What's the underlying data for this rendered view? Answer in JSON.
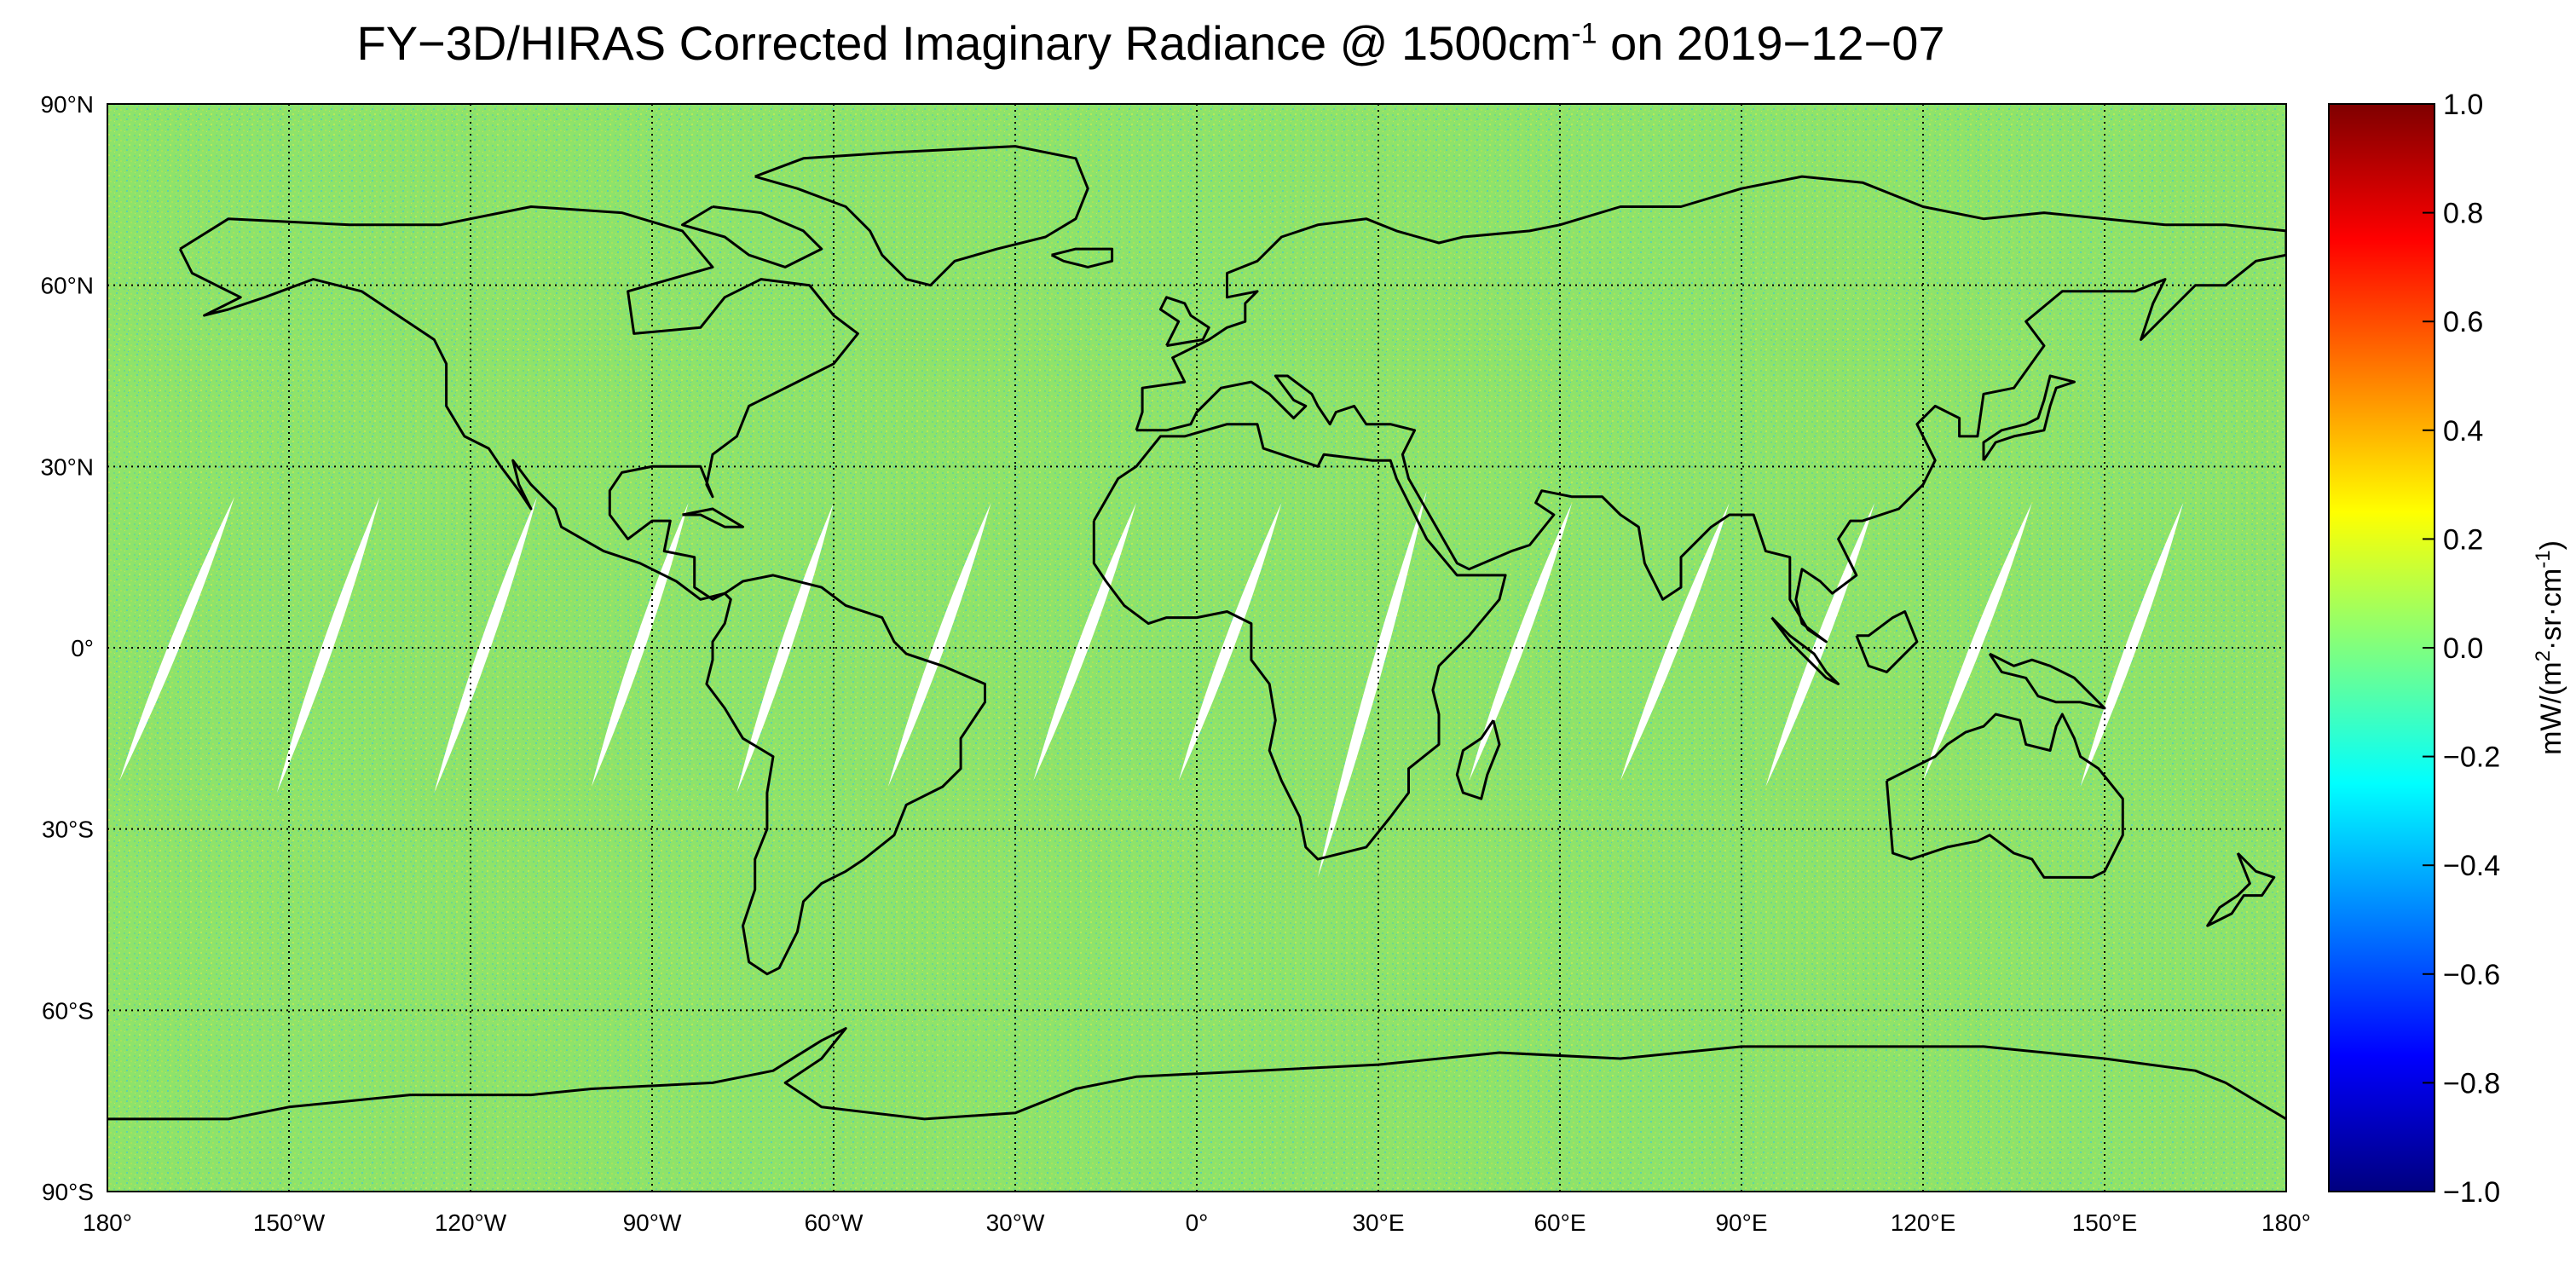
{
  "title": {
    "pre": "FY−3D/HIRAS Corrected Imaginary Radiance @ 1500cm",
    "sup": "-1",
    "post": " on 2019−12−07"
  },
  "map": {
    "projection": "equirectangular",
    "lon_range": [
      -180,
      180
    ],
    "lat_range": [
      -90,
      90
    ],
    "lat_ticks": [
      {
        "value": 90,
        "label": "90°N"
      },
      {
        "value": 60,
        "label": "60°N"
      },
      {
        "value": 30,
        "label": "30°N"
      },
      {
        "value": 0,
        "label": "0°"
      },
      {
        "value": -30,
        "label": "30°S"
      },
      {
        "value": -60,
        "label": "60°S"
      },
      {
        "value": -90,
        "label": "90°S"
      }
    ],
    "lon_ticks": [
      {
        "value": -180,
        "label": "180°"
      },
      {
        "value": -150,
        "label": "150°W"
      },
      {
        "value": -120,
        "label": "120°W"
      },
      {
        "value": -90,
        "label": "90°W"
      },
      {
        "value": -60,
        "label": "60°W"
      },
      {
        "value": -30,
        "label": "30°W"
      },
      {
        "value": 0,
        "label": "0°"
      },
      {
        "value": 30,
        "label": "30°E"
      },
      {
        "value": 60,
        "label": "60°E"
      },
      {
        "value": 90,
        "label": "90°E"
      },
      {
        "value": 120,
        "label": "120°E"
      },
      {
        "value": 150,
        "label": "150°E"
      },
      {
        "value": 180,
        "label": "180°"
      }
    ],
    "background_color": "#8ee36a",
    "coastline_color": "#000000",
    "gridlines": "dotted"
  },
  "gaps": [
    {
      "north_lon": -159,
      "north_lat": 25,
      "south_lon": -178,
      "south_lat": -22
    },
    {
      "north_lon": -135,
      "north_lat": 25,
      "south_lon": -152,
      "south_lat": -24
    },
    {
      "north_lon": -109,
      "north_lat": 25,
      "south_lon": -126,
      "south_lat": -24
    },
    {
      "north_lon": -84,
      "north_lat": 24,
      "south_lon": -100,
      "south_lat": -23
    },
    {
      "north_lon": -60,
      "north_lat": 24,
      "south_lon": -76,
      "south_lat": -24
    },
    {
      "north_lon": -34,
      "north_lat": 24,
      "south_lon": -51,
      "south_lat": -23
    },
    {
      "north_lon": -10,
      "north_lat": 24,
      "south_lon": -27,
      "south_lat": -22
    },
    {
      "north_lon": 14,
      "north_lat": 24,
      "south_lon": -3,
      "south_lat": -22
    },
    {
      "north_lon": 38,
      "north_lat": 26,
      "south_lon": 20,
      "south_lat": -38
    },
    {
      "north_lon": 62,
      "north_lat": 24,
      "south_lon": 45,
      "south_lat": -22
    },
    {
      "north_lon": 88,
      "north_lat": 24,
      "south_lon": 70,
      "south_lat": -22
    },
    {
      "north_lon": 112,
      "north_lat": 24,
      "south_lon": 94,
      "south_lat": -23
    },
    {
      "north_lon": 138,
      "north_lat": 24,
      "south_lon": 120,
      "south_lat": -22
    },
    {
      "north_lon": 163,
      "north_lat": 24,
      "south_lon": 146,
      "south_lat": -23
    }
  ],
  "colorbar": {
    "min": -1.0,
    "max": 1.0,
    "ticks": [
      {
        "value": 1.0,
        "label": "1.0"
      },
      {
        "value": 0.8,
        "label": "0.8"
      },
      {
        "value": 0.6,
        "label": "0.6"
      },
      {
        "value": 0.4,
        "label": "0.4"
      },
      {
        "value": 0.2,
        "label": "0.2"
      },
      {
        "value": 0.0,
        "label": "0.0"
      },
      {
        "value": -0.2,
        "label": "−0.2"
      },
      {
        "value": -0.4,
        "label": "−0.4"
      },
      {
        "value": -0.6,
        "label": "−0.6"
      },
      {
        "value": -0.8,
        "label": "−0.8"
      },
      {
        "value": -1.0,
        "label": "−1.0"
      }
    ],
    "label": {
      "pre": "mW/(m",
      "sup1": "2",
      "mid": "·sr·cm",
      "sup2": "-1",
      "post": ")"
    },
    "colors": [
      "#00007f",
      "#0000ff",
      "#007fff",
      "#00ffff",
      "#7fff7f",
      "#ffff00",
      "#ff7f00",
      "#ff0000",
      "#7f0000"
    ]
  }
}
